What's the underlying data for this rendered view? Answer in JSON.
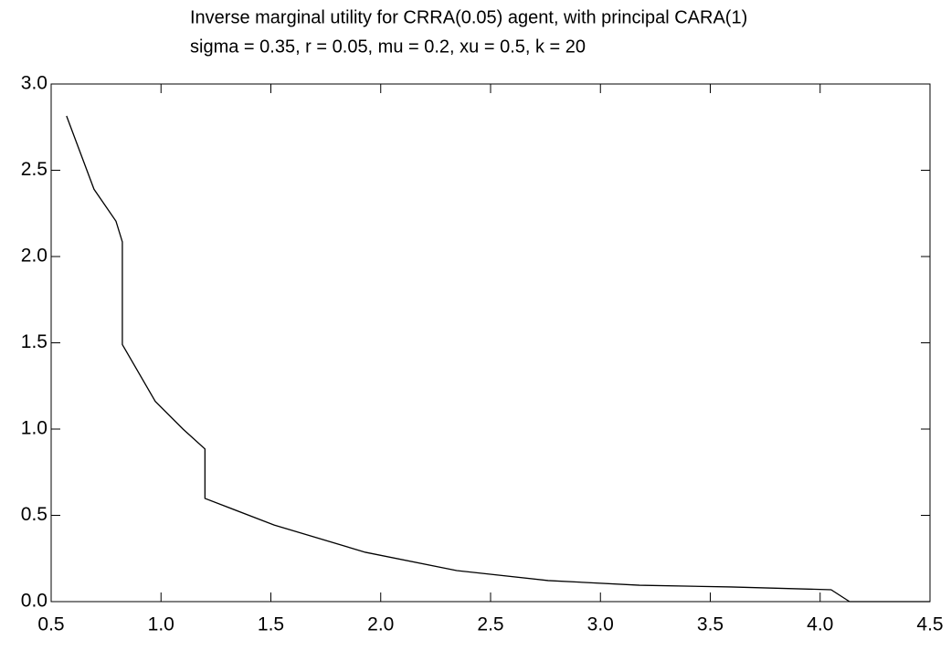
{
  "chart_data": {
    "type": "line",
    "title": "Inverse marginal utility for CRRA(0.05) agent, with principal CARA(1)",
    "subtitle": "sigma = 0.35, r = 0.05, mu = 0.2, xu = 0.5, k = 20",
    "x": [
      0.57,
      0.695,
      0.795,
      0.824,
      0.824,
      0.974,
      1.1,
      1.2,
      1.2,
      1.515,
      1.93,
      2.346,
      2.762,
      3.178,
      3.594,
      4.05,
      4.134,
      4.5
    ],
    "series": [
      {
        "color": "#000000",
        "values": [
          2.815,
          2.39,
          2.205,
          2.085,
          1.49,
          1.16,
          1.0,
          0.885,
          0.598,
          0.444,
          0.286,
          0.18,
          0.122,
          0.095,
          0.085,
          0.069,
          0.0,
          0.0
        ]
      }
    ],
    "xlim": [
      0.5,
      4.5
    ],
    "xticks": [
      0.5,
      {
        "value": 1,
        "label": "1.0"
      },
      1.5,
      {
        "value": 2,
        "label": "2.0"
      },
      2.5,
      {
        "value": 3,
        "label": "3.0"
      },
      3.5,
      {
        "value": 4,
        "label": "4.0"
      },
      4.5
    ],
    "ylim": [
      0,
      3
    ],
    "yticks": [
      {
        "value": 0,
        "label": "0.0"
      },
      0.5,
      {
        "value": 1,
        "label": "1.0"
      },
      1.5,
      {
        "value": 2,
        "label": "2.0"
      },
      2.5,
      {
        "value": 3,
        "label": "3.0"
      }
    ],
    "grid": false
  }
}
